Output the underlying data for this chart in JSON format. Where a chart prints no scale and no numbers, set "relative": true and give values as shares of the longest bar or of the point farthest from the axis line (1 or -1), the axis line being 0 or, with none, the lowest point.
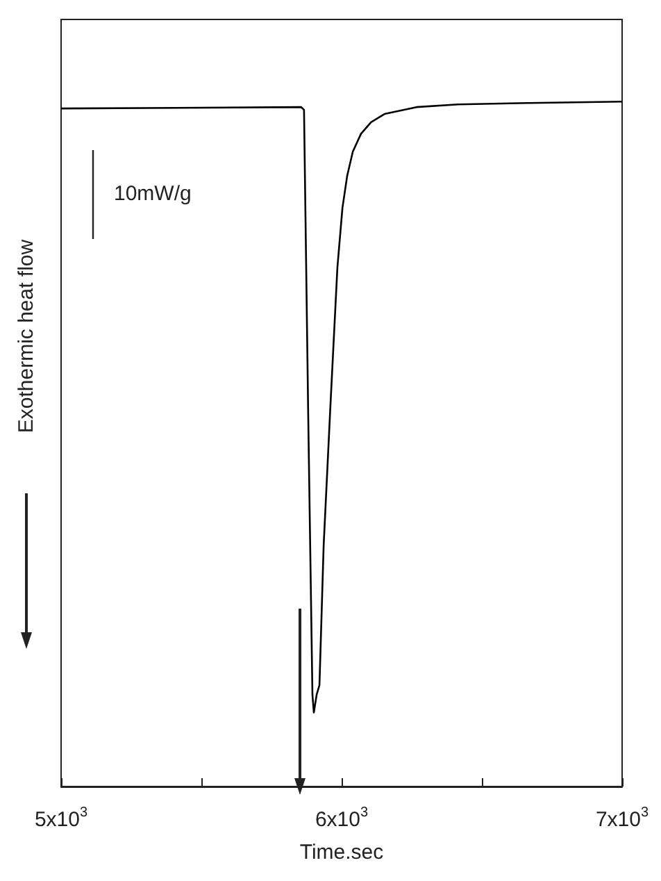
{
  "chart_data": {
    "type": "line",
    "xlabel": "Time.sec",
    "ylabel": "Exothermic heat flow",
    "relative": true,
    "tick_labels": "x",
    "grid": false,
    "marker": "none",
    "annotations": [
      "10mW/g"
    ],
    "xlim": [
      5000,
      7000
    ],
    "xticks": [
      {
        "value": 5000,
        "label": "5x10$^{3}$"
      },
      {
        "value": 5500,
        "label": null
      },
      {
        "value": 6000,
        "label": "6x10$^{3}$"
      },
      {
        "value": 6500,
        "label": null
      },
      {
        "value": 7000,
        "label": "7x10$^{3}$"
      }
    ],
    "series": [
      {
        "color": "#000000",
        "x": [
          5000,
          5856,
          5866,
          5881,
          5896,
          5901,
          5911,
          5921,
          5936,
          5960,
          5985,
          6003,
          6020,
          6040,
          6069,
          6105,
          6153,
          6267,
          6416,
          6663,
          7000
        ],
        "values": [
          0.99,
          0.992,
          0.988,
          0.541,
          0.134,
          0.108,
          0.134,
          0.148,
          0.352,
          0.555,
          0.758,
          0.845,
          0.892,
          0.927,
          0.953,
          0.97,
          0.982,
          0.992,
          0.996,
          0.998,
          1.0
        ]
      }
    ]
  }
}
